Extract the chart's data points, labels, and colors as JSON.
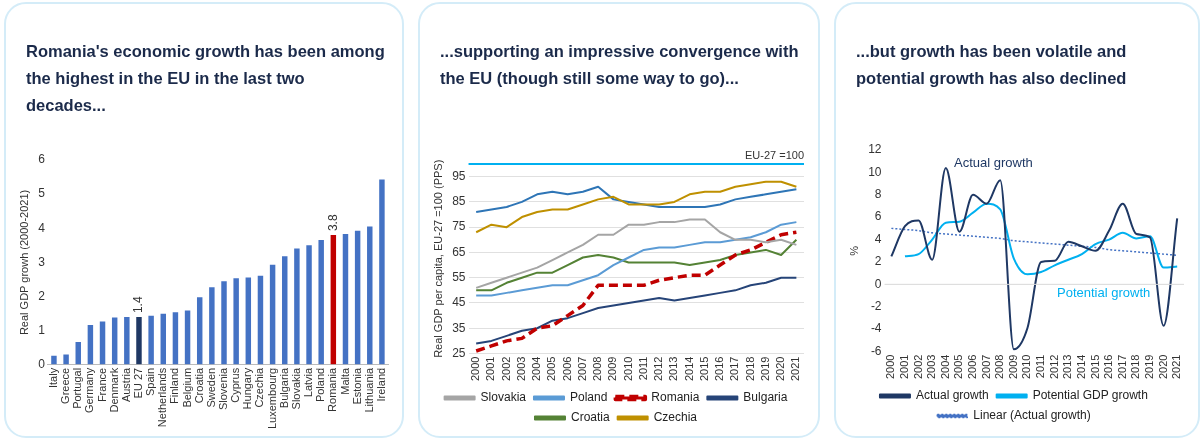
{
  "chart_data": [
    {
      "type": "bar",
      "title": "Romania's economic growth has been among the highest in the EU in the last two decades...",
      "ylabel": "Real GDP growh (2000-2021)",
      "categories": [
        "Italy",
        "Greece",
        "Portugal",
        "Germany",
        "France",
        "Denmark",
        "Austria",
        "EU 27",
        "Spain",
        "Netherlands",
        "Finland",
        "Belgium",
        "Croatia",
        "Sweden",
        "Slovenia",
        "Cyprus",
        "Hungary",
        "Czechia",
        "Luxembourg",
        "Bulgaria",
        "Slovakia",
        "Latvia",
        "Poland",
        "Romania",
        "Malta",
        "Estonia",
        "Lithuania",
        "Ireland"
      ],
      "values": [
        0.27,
        0.3,
        0.67,
        1.17,
        1.27,
        1.39,
        1.4,
        1.4,
        1.44,
        1.5,
        1.54,
        1.59,
        1.98,
        2.27,
        2.45,
        2.54,
        2.56,
        2.61,
        2.93,
        3.18,
        3.41,
        3.5,
        3.66,
        3.8,
        3.83,
        3.93,
        4.05,
        5.43
      ],
      "colors": [
        "#4472c4",
        "#4472c4",
        "#4472c4",
        "#4472c4",
        "#4472c4",
        "#4472c4",
        "#4472c4",
        "#1f3864",
        "#4472c4",
        "#4472c4",
        "#4472c4",
        "#4472c4",
        "#4472c4",
        "#4472c4",
        "#4472c4",
        "#4472c4",
        "#4472c4",
        "#4472c4",
        "#4472c4",
        "#4472c4",
        "#4472c4",
        "#4472c4",
        "#4472c4",
        "#c00000",
        "#4472c4",
        "#4472c4",
        "#4472c4",
        "#4472c4"
      ],
      "value_labels": [
        null,
        null,
        null,
        null,
        null,
        null,
        null,
        "1.4",
        null,
        null,
        null,
        null,
        null,
        null,
        null,
        null,
        null,
        null,
        null,
        null,
        null,
        null,
        null,
        "3.8",
        null,
        null,
        null,
        null
      ],
      "ylim": [
        0,
        6
      ],
      "yticks": [
        0,
        1,
        2,
        3,
        4,
        5,
        6
      ],
      "grid": false,
      "legend": false
    },
    {
      "type": "line",
      "title": "...supporting an impressive convergence with the EU (though still some way to go)...",
      "ylabel": "Real GDP per capita, EU-27 =100 (PPS)",
      "categories": [
        "2000",
        "2001",
        "2002",
        "2003",
        "2004",
        "2005",
        "2006",
        "2007",
        "2008",
        "2009",
        "2010",
        "2011",
        "2012",
        "2013",
        "2014",
        "2015",
        "2016",
        "2017",
        "2018",
        "2019",
        "2020",
        "2021"
      ],
      "series": [
        {
          "name": "Slovakia",
          "color": "#a5a5a5",
          "values": [
            51,
            53,
            55,
            57,
            59,
            62,
            65,
            68,
            72,
            72,
            76,
            76,
            77,
            77,
            78,
            78,
            73,
            70,
            70,
            69,
            70,
            68
          ]
        },
        {
          "name": "Poland",
          "color": "#5b9bd5",
          "values": [
            48,
            48,
            49,
            50,
            51,
            52,
            52,
            54,
            56,
            60,
            63,
            66,
            67,
            67,
            68,
            69,
            69,
            70,
            71,
            73,
            76,
            77
          ]
        },
        {
          "name": "Romania",
          "color": "#c00000",
          "line_style": "dashed",
          "values": [
            26,
            28,
            30,
            31,
            35,
            36,
            40,
            44,
            52,
            52,
            52,
            52,
            54,
            55,
            56,
            56,
            60,
            64,
            66,
            69,
            72,
            73
          ]
        },
        {
          "name": "Bulgaria",
          "color": "#264478",
          "values": [
            29,
            30,
            32,
            34,
            35,
            38,
            39,
            41,
            43,
            44,
            45,
            46,
            47,
            46,
            47,
            48,
            49,
            50,
            52,
            53,
            55,
            55
          ]
        },
        {
          "name": "Croatia",
          "color": "#548235",
          "values": [
            50,
            50,
            53,
            55,
            57,
            57,
            60,
            63,
            64,
            63,
            61,
            61,
            61,
            61,
            60,
            61,
            62,
            64,
            65,
            66,
            64,
            70
          ]
        },
        {
          "name": "Czechia",
          "color": "#bf9000",
          "values": [
            73,
            76,
            75,
            79,
            81,
            82,
            82,
            84,
            86,
            87,
            84,
            84,
            84,
            85,
            88,
            89,
            89,
            91,
            92,
            93,
            93,
            91
          ]
        },
        {
          "color": "#2e75b6",
          "values": [
            81,
            82,
            83,
            85,
            88,
            89,
            88,
            89,
            91,
            86,
            85,
            84,
            83,
            83,
            83,
            83,
            84,
            86,
            87,
            88,
            89,
            90
          ]
        }
      ],
      "ref_lines": [
        {
          "axis": "y",
          "value": 100,
          "label": "EU-27 =100",
          "color": "#00b0f0"
        }
      ],
      "ylim": [
        25,
        100
      ],
      "yticks": [
        25,
        35,
        45,
        55,
        65,
        75,
        85,
        95
      ],
      "grid": "y",
      "legend": "bottom",
      "line_style": "solid",
      "marker": "none"
    },
    {
      "type": "line",
      "title": "...but growth has been volatile and potential growth has also declined",
      "ylabel": "%",
      "categories": [
        "2000",
        "2001",
        "2002",
        "2003",
        "2004",
        "2005",
        "2006",
        "2007",
        "2008",
        "2009",
        "2010",
        "2011",
        "2012",
        "2013",
        "2014",
        "2015",
        "2016",
        "2017",
        "2018",
        "2019",
        "2020",
        "2021"
      ],
      "series": [
        {
          "name": "Actual growth",
          "color": "#1f3864",
          "values": [
            2.5,
            5.2,
            5.7,
            2.2,
            10.4,
            4.7,
            8.0,
            7.2,
            9.3,
            -5.8,
            -3.9,
            2.0,
            2.1,
            3.8,
            3.4,
            3.0,
            4.8,
            7.2,
            4.5,
            4.2,
            -3.7,
            5.9
          ]
        },
        {
          "name": "Potential GDP growth",
          "color": "#00b0f0",
          "values": [
            null,
            2.5,
            2.7,
            4.0,
            5.5,
            5.6,
            6.4,
            7.2,
            6.7,
            2.3,
            0.9,
            1.1,
            1.7,
            2.2,
            2.7,
            3.6,
            4.0,
            4.6,
            4.1,
            4.3,
            1.5,
            1.6
          ]
        },
        {
          "name": "Linear (Actual growth)",
          "color": "#4472c4",
          "line_style": "dotted",
          "values": [
            5.0,
            4.9,
            4.8,
            4.6,
            4.5,
            4.4,
            4.3,
            4.2,
            4.1,
            3.9,
            3.8,
            3.7,
            3.6,
            3.5,
            3.4,
            3.3,
            3.1,
            3.0,
            2.9,
            2.8,
            2.7,
            2.6
          ]
        }
      ],
      "annotations": [
        "Actual growth",
        "Potential growth"
      ],
      "ref_lines": [
        {
          "axis": "y",
          "value": 0,
          "color": "#d9d9d9"
        }
      ],
      "ylim": [
        -6,
        12
      ],
      "yticks": [
        -6,
        -4,
        -2,
        0,
        2,
        4,
        6,
        8,
        10,
        12
      ],
      "grid": false,
      "legend": "bottom",
      "marker": "none"
    }
  ]
}
